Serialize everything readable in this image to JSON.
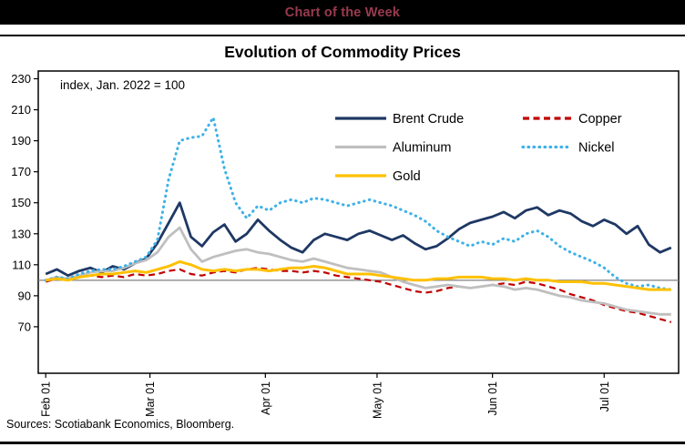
{
  "banner": {
    "title": "Chart of the Week",
    "text_color": "#9a3b4f",
    "bg_color": "#000000"
  },
  "footer": {
    "sources": "Sources: Scotiabank Economics, Bloomberg."
  },
  "chart_data": {
    "type": "line",
    "title": "Evolution of Commodity Prices",
    "annotation": "index, Jan. 2022 = 100",
    "xlabel": "",
    "ylabel": "index, Jan. 2022 = 100",
    "x_unit": "days since Feb 01, 2022",
    "xlim": [
      -2,
      170
    ],
    "ylim": [
      40,
      235
    ],
    "y_ticks": [
      230,
      210,
      190,
      170,
      150,
      130,
      110,
      90,
      70
    ],
    "x_ticks": [
      {
        "label": "Feb 01",
        "day": 0
      },
      {
        "label": "Mar 01",
        "day": 28
      },
      {
        "label": "Apr 01",
        "day": 59
      },
      {
        "label": "May 01",
        "day": 89
      },
      {
        "label": "Jun 01",
        "day": 120
      },
      {
        "label": "Jul 01",
        "day": 150
      }
    ],
    "grid": false,
    "legend_position": "inside-top-right-two-columns",
    "reference_line": {
      "value": 100,
      "color": "#808080"
    },
    "x": [
      0,
      3,
      6,
      9,
      12,
      15,
      18,
      21,
      24,
      27,
      30,
      33,
      36,
      39,
      42,
      45,
      48,
      51,
      54,
      57,
      60,
      63,
      66,
      69,
      72,
      75,
      78,
      81,
      84,
      87,
      90,
      93,
      96,
      99,
      102,
      105,
      108,
      111,
      114,
      117,
      120,
      123,
      126,
      129,
      132,
      135,
      138,
      141,
      144,
      147,
      150,
      153,
      156,
      159,
      162,
      165,
      168
    ],
    "series": [
      {
        "name": "Brent Crude",
        "color": "#1f3864",
        "dash": "solid",
        "width": 2.8,
        "values": [
          104,
          107,
          103,
          106,
          108,
          105,
          109,
          107,
          111,
          114,
          124,
          137,
          150,
          128,
          122,
          131,
          136,
          125,
          130,
          139,
          132,
          126,
          121,
          118,
          126,
          130,
          128,
          126,
          130,
          132,
          129,
          126,
          129,
          124,
          120,
          122,
          127,
          133,
          137,
          139,
          141,
          144,
          140,
          145,
          147,
          142,
          145,
          143,
          138,
          135,
          139,
          136,
          130,
          135,
          123,
          118,
          121
        ]
      },
      {
        "name": "Copper",
        "color": "#c00000",
        "dash": "dashed",
        "width": 2.2,
        "values": [
          99,
          101,
          100,
          102,
          103,
          102,
          103,
          102,
          104,
          103,
          104,
          106,
          107,
          104,
          103,
          105,
          106,
          105,
          107,
          108,
          107,
          106,
          106,
          105,
          106,
          105,
          103,
          102,
          101,
          100,
          99,
          97,
          95,
          93,
          92,
          93,
          95,
          96,
          95,
          96,
          97,
          98,
          97,
          99,
          98,
          96,
          94,
          91,
          89,
          87,
          84,
          82,
          80,
          79,
          77,
          75,
          73
        ]
      },
      {
        "name": "Aluminum",
        "color": "#bfbfbf",
        "dash": "solid",
        "width": 2.8,
        "values": [
          100,
          102,
          101,
          103,
          105,
          106,
          106,
          108,
          111,
          113,
          118,
          128,
          134,
          120,
          112,
          115,
          117,
          119,
          120,
          118,
          117,
          115,
          113,
          112,
          114,
          112,
          110,
          108,
          107,
          106,
          105,
          102,
          99,
          97,
          95,
          96,
          97,
          96,
          95,
          96,
          97,
          96,
          94,
          95,
          94,
          92,
          90,
          89,
          87,
          86,
          85,
          83,
          81,
          80,
          79,
          78,
          78
        ]
      },
      {
        "name": "Nickel",
        "color": "#3eb1e8",
        "dash": "dotted",
        "width": 3,
        "values": [
          100,
          102,
          101,
          104,
          106,
          107,
          107,
          109,
          112,
          115,
          126,
          165,
          190,
          192,
          193,
          205,
          172,
          150,
          140,
          148,
          145,
          150,
          152,
          150,
          153,
          152,
          150,
          148,
          150,
          152,
          150,
          148,
          145,
          142,
          138,
          132,
          128,
          125,
          122,
          125,
          123,
          127,
          125,
          130,
          132,
          128,
          122,
          118,
          115,
          112,
          108,
          102,
          98,
          96,
          97,
          95,
          94
        ]
      },
      {
        "name": "Gold",
        "color": "#ffc000",
        "dash": "solid",
        "width": 3,
        "values": [
          100,
          101,
          100,
          102,
          103,
          104,
          104,
          105,
          106,
          105,
          107,
          109,
          112,
          110,
          107,
          106,
          107,
          106,
          107,
          107,
          106,
          107,
          108,
          108,
          109,
          108,
          106,
          104,
          104,
          104,
          103,
          102,
          101,
          100,
          100,
          101,
          101,
          102,
          102,
          102,
          101,
          101,
          100,
          101,
          100,
          100,
          99,
          99,
          99,
          98,
          98,
          97,
          96,
          95,
          94,
          94,
          94
        ]
      }
    ]
  }
}
